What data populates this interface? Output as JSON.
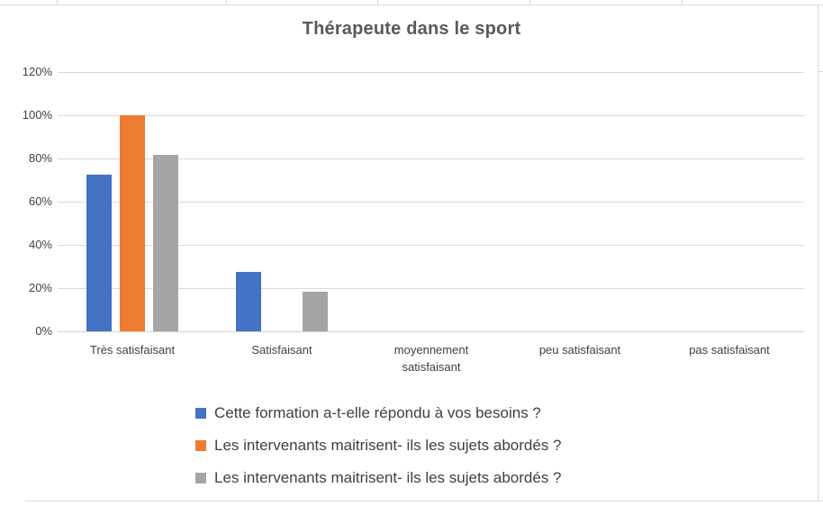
{
  "chart_data": {
    "type": "bar",
    "title": "Thérapeute dans le sport",
    "categories": [
      "Très satisfaisant",
      "Satisfaisant",
      "moyennement satisfaisant",
      "peu satisfaisant",
      "pas satisfaisant"
    ],
    "series": [
      {
        "name": "Cette formation a-t-elle répondu à vos besoins ?",
        "color": "#4472C4",
        "values": [
          72.7,
          27.3,
          0,
          0,
          0
        ]
      },
      {
        "name": "Les intervenants maitrisent- ils les sujets abordés ?",
        "color": "#ED7D31",
        "values": [
          100,
          0,
          0,
          0,
          0
        ]
      },
      {
        "name": "Les intervenants maitrisent- ils les sujets abordés ?",
        "color": "#A5A5A5",
        "values": [
          81.8,
          18.2,
          0,
          0,
          0
        ]
      }
    ],
    "y_axis": {
      "ticks": [
        "0%",
        "20%",
        "40%",
        "60%",
        "80%",
        "100%",
        "120%"
      ],
      "min": 0,
      "max": 120,
      "step": 20,
      "unit": "%"
    },
    "grid": true,
    "legend_position": "bottom"
  },
  "colors": {
    "gridline": "#d9d9d9",
    "cell_border": "#d9d9d9",
    "title_text": "#595959",
    "axis_text": "#3f3f3f",
    "legend_text": "#404040"
  }
}
